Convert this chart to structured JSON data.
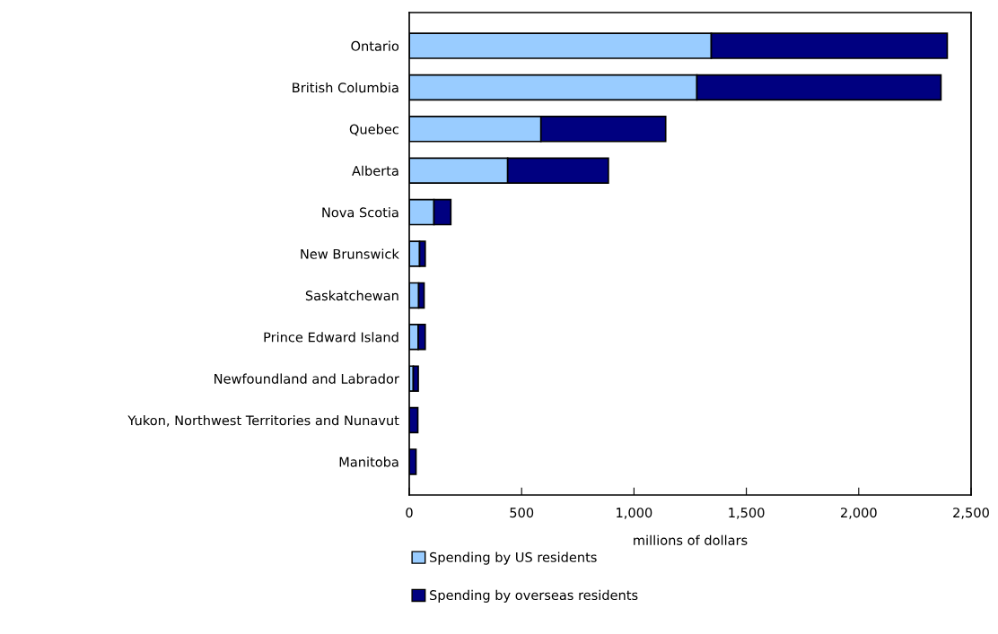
{
  "chart_data": {
    "type": "bar",
    "orientation": "horizontal",
    "stacked": true,
    "categories": [
      "Ontario",
      "British Columbia",
      "Quebec",
      "Alberta",
      "Nova Scotia",
      "New Brunswick",
      "Saskatchewan",
      "Prince Edward Island",
      "Newfoundland and Labrador",
      "Yukon, Northwest Territories and Nunavut",
      "Manitoba"
    ],
    "series": [
      {
        "name": "Spending by US residents",
        "color": "#99ccff",
        "values": [
          1344,
          1280,
          586,
          438,
          110,
          46,
          42,
          40,
          18,
          0,
          0
        ]
      },
      {
        "name": "Spending by overseas residents",
        "color": "#000080",
        "values": [
          1050,
          1086,
          555,
          448,
          75,
          25,
          24,
          31,
          22,
          38,
          30
        ]
      }
    ],
    "xlabel": "millions of dollars",
    "xlim": [
      0,
      2500
    ],
    "xticks": [
      0,
      {
        "value": 500,
        "label": "500"
      },
      {
        "value": 1000,
        "label": "1,000"
      },
      {
        "value": 1500,
        "label": "1,500"
      },
      {
        "value": 2000,
        "label": "2,000"
      },
      {
        "value": 2500,
        "label": "2,500"
      }
    ],
    "grid": false,
    "legend": "bottom"
  }
}
